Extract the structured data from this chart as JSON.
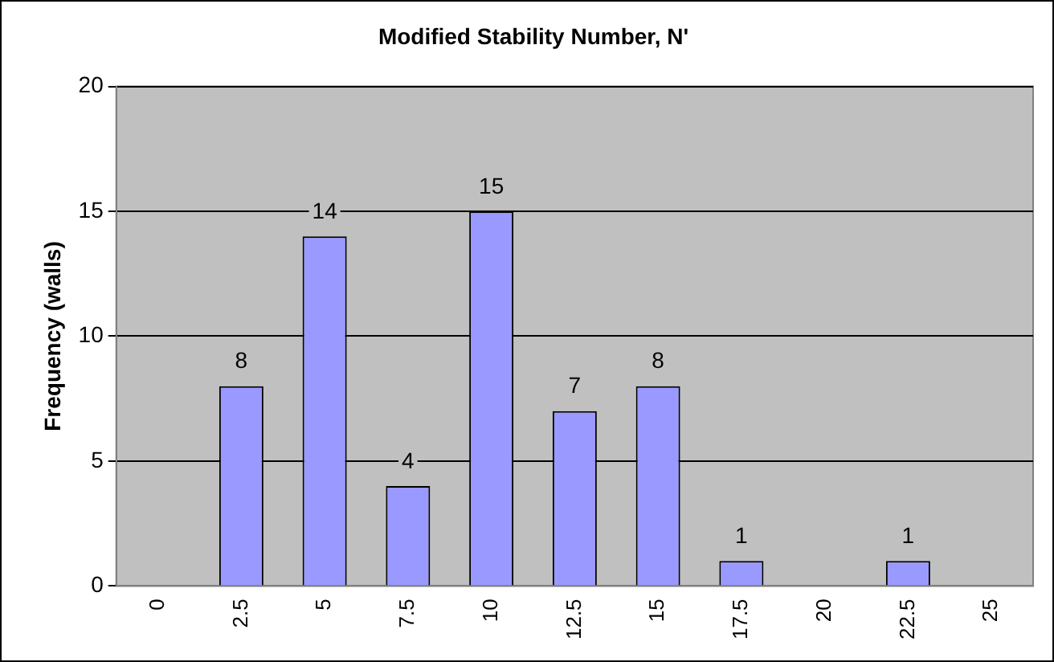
{
  "chart_data": {
    "type": "bar",
    "title": "Modified Stability Number, N'",
    "ylabel": "Frequency (walls)",
    "categories": [
      "0",
      "2.5",
      "5",
      "7.5",
      "10",
      "12.5",
      "15",
      "17.5",
      "20",
      "22.5",
      "25"
    ],
    "values": [
      0,
      8,
      14,
      4,
      15,
      7,
      8,
      1,
      0,
      1,
      0
    ],
    "value_labels": [
      null,
      "8",
      "14",
      "4",
      "15",
      "7",
      "8",
      "1",
      null,
      "1",
      null
    ],
    "color": "#9999ff",
    "ylim": [
      0,
      20
    ],
    "yticks": [
      0,
      5,
      10,
      15,
      20
    ],
    "grid": "y",
    "legend": false
  }
}
